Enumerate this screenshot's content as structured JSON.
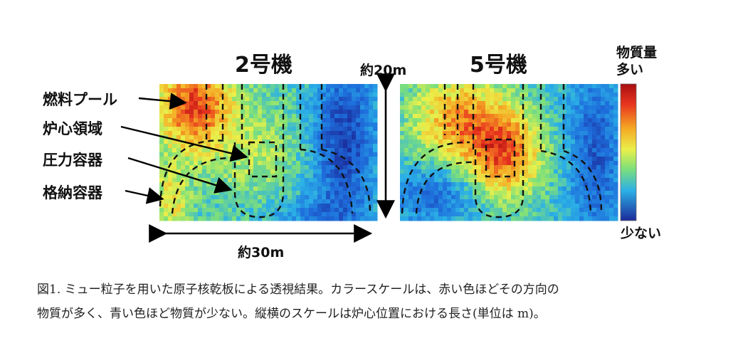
{
  "panels": [
    {
      "title": "2号機"
    },
    {
      "title": "5号機"
    }
  ],
  "labels": {
    "fuel_pool": "燃料プール",
    "core_region": "炉心領域",
    "pressure_vessel": "圧力容器",
    "containment": "格納容器"
  },
  "dimensions": {
    "height": "約20m",
    "width": "約30m"
  },
  "color_scale": {
    "top_line1": "物質量",
    "top_line2": "多い",
    "bottom": "少ない"
  },
  "caption": {
    "line1": "図1. ミュー粒子を用いた原子核乾板による透視結果。カラースケールは、赤い色ほどその方向の",
    "line2": "物質が多く、青い色ほど物質が少ない。縦横のスケールは炉心位置における長さ(単位は m)。"
  },
  "colors": {
    "high": "#c81e1e",
    "mid": "#e8e84a",
    "low": "#1a4fc0"
  }
}
